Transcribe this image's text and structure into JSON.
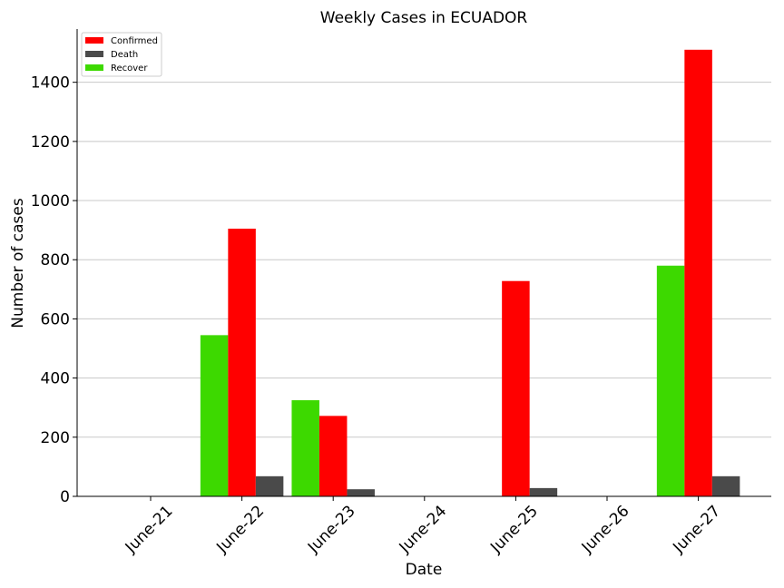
{
  "chart_data": {
    "type": "bar",
    "title": "Weekly Cases in ECUADOR",
    "xlabel": "Date",
    "ylabel": "Number of cases",
    "categories": [
      "June-21",
      "June-22",
      "June-23",
      "June-24",
      "June-25",
      "June-26",
      "June-27"
    ],
    "series": [
      {
        "name": "Recover",
        "color": "#3dd900",
        "values": [
          0,
          545,
          325,
          0,
          0,
          0,
          780
        ]
      },
      {
        "name": "Confirmed",
        "color": "#ff0000",
        "values": [
          0,
          905,
          272,
          0,
          728,
          0,
          1510
        ]
      },
      {
        "name": "Death",
        "color": "#4a4a4a",
        "values": [
          0,
          68,
          24,
          0,
          28,
          0,
          68
        ]
      }
    ],
    "legend_order": [
      "Confirmed",
      "Death",
      "Recover"
    ],
    "ylim": [
      0,
      1580
    ],
    "yticks": [
      0,
      200,
      400,
      600,
      800,
      1000,
      1200,
      1400
    ],
    "grid": "horizontal",
    "legend_position": "top-left"
  }
}
